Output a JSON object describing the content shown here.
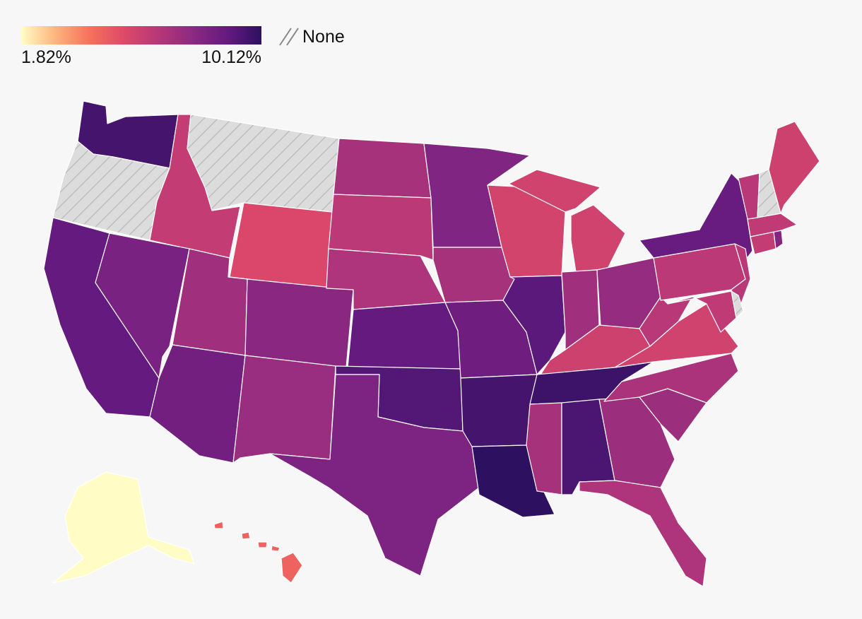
{
  "legend": {
    "min_label": "1.82%",
    "max_label": "10.12%",
    "none_label": "None",
    "min_value": 1.82,
    "max_value": 10.12,
    "gradient_stops": [
      "#fffdc5",
      "#fdb47c",
      "#f7705c",
      "#de4968",
      "#b73779",
      "#8c2981",
      "#641a80",
      "#2d1160"
    ]
  },
  "no_data_color": "#dcdcdc",
  "chart_data": {
    "type": "choropleth",
    "region": "United States",
    "unit": "%",
    "missing": [
      "Oregon",
      "Montana",
      "New Hampshire",
      "Delaware"
    ],
    "values": {
      "Washington": 9.6,
      "Oregon": null,
      "California": 8.9,
      "Idaho": 6.2,
      "Nevada": 8.3,
      "Montana": null,
      "Wyoming": 5.5,
      "Utah": 7.2,
      "Arizona": 8.5,
      "Colorado": 7.8,
      "New Mexico": 7.4,
      "North Dakota": 7.0,
      "South Dakota": 6.4,
      "Nebraska": 6.8,
      "Kansas": 8.9,
      "Oklahoma": 9.3,
      "Texas": 8.2,
      "Minnesota": 8.1,
      "Iowa": 7.0,
      "Missouri": 8.6,
      "Arkansas": 9.6,
      "Louisiana": 10.12,
      "Wisconsin": 5.7,
      "Illinois": 9.1,
      "Michigan": 5.8,
      "Indiana": 7.2,
      "Ohio": 7.5,
      "Kentucky": 5.9,
      "Tennessee": 9.8,
      "Mississippi": 7.0,
      "Alabama": 9.5,
      "Georgia": 7.3,
      "Florida": 6.8,
      "South Carolina": 7.3,
      "North Carolina": 6.9,
      "Virginia": 5.8,
      "West Virginia": 6.5,
      "Pennsylvania": 6.4,
      "New York": 8.8,
      "New Jersey": 6.5,
      "Maryland": 6.3,
      "Delaware": null,
      "Connecticut": 6.2,
      "Rhode Island": 8.0,
      "Massachusetts": 6.3,
      "Vermont": 6.5,
      "New Hampshire": null,
      "Maine": 5.9,
      "Alaska": 1.82,
      "Hawaii": 4.6
    }
  }
}
